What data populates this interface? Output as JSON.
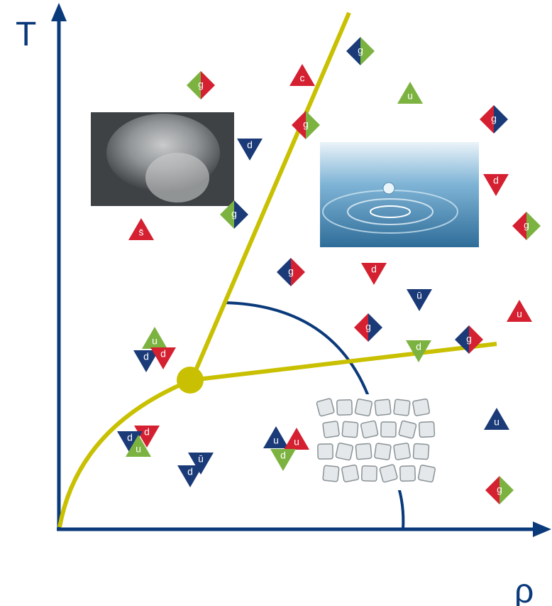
{
  "axes": {
    "y_label": "T",
    "x_label": "ρ"
  },
  "particles": [
    "g",
    "g",
    "c",
    "u",
    "g",
    "g",
    "d",
    "d",
    "g",
    "s̄",
    "g",
    "g",
    "d",
    "ū",
    "u",
    "g",
    "g",
    "d",
    "u",
    "d",
    "d",
    "u",
    "g",
    "d",
    "d",
    "u",
    "u",
    "u",
    "d",
    "ū",
    "d"
  ]
}
